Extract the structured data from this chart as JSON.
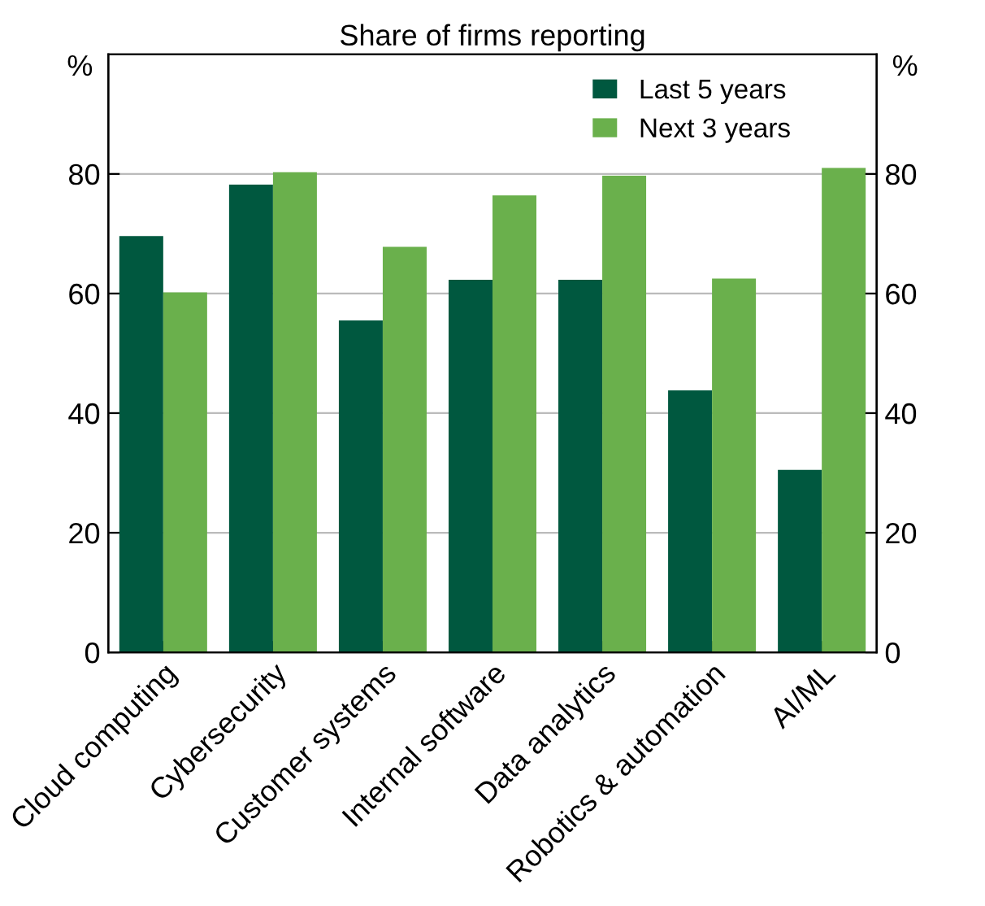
{
  "chart_data": {
    "type": "bar",
    "title": "Share of firms reporting",
    "categories": [
      "Cloud computing",
      "Cybersecurity",
      "Customer systems",
      "Internal software",
      "Data analytics",
      "Robotics & automation",
      "AI/ML"
    ],
    "series": [
      {
        "name": "Last 5 years",
        "color": "#00583f",
        "values": [
          69.6,
          78.2,
          55.5,
          62.3,
          62.3,
          43.8,
          30.5
        ]
      },
      {
        "name": "Next 3 years",
        "color": "#6ab04c",
        "values": [
          60.2,
          80.3,
          67.8,
          76.4,
          79.7,
          62.5,
          81.0
        ]
      }
    ],
    "ylabel": "%",
    "y2label": "%",
    "ylim": [
      0,
      100
    ],
    "yticks": [
      0,
      20,
      40,
      60,
      80
    ],
    "y2lim": [
      0,
      100
    ],
    "y2ticks": [
      0,
      20,
      40,
      60,
      80
    ],
    "grid": "y",
    "legend": "top right"
  }
}
